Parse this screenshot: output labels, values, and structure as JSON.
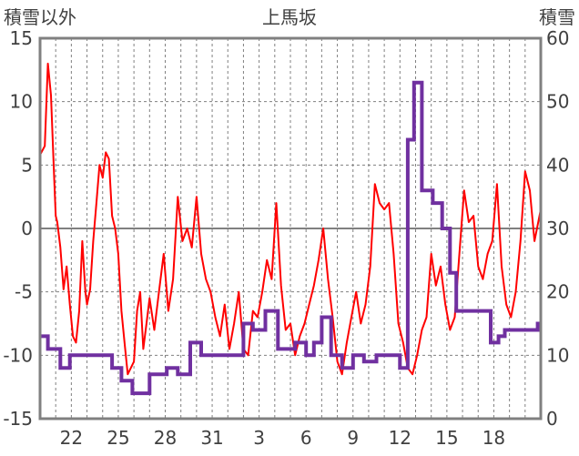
{
  "chart_data": {
    "type": "line",
    "title": "上馬坂",
    "y_left_label": "積雪以外",
    "y_right_label": "積雪",
    "y_left_ticks": [
      "15",
      "10",
      "5",
      "0",
      "-5",
      "-10",
      "-15"
    ],
    "y_right_ticks": [
      "60",
      "50",
      "40",
      "30",
      "20",
      "10",
      "0"
    ],
    "x_tick_labels": [
      "22",
      "25",
      "28",
      "31",
      "3",
      "6",
      "9",
      "12",
      "15",
      "18"
    ],
    "left_ylim": [
      -15,
      15
    ],
    "right_ylim": [
      0,
      60
    ],
    "x_range_days": [
      0,
      32
    ],
    "colors": {
      "series_red": "#ff0000",
      "series_purple": "#7030a0",
      "frame": "#808080",
      "grid": "#808080"
    },
    "series": [
      {
        "axis": "left",
        "color": "#ff0000",
        "x": [
          0,
          0.3,
          0.5,
          0.7,
          0.9,
          1.0,
          1.1,
          1.3,
          1.5,
          1.7,
          1.9,
          2.1,
          2.3,
          2.5,
          2.7,
          2.9,
          3.0,
          3.2,
          3.4,
          3.6,
          3.8,
          4.0,
          4.2,
          4.4,
          4.6,
          4.8,
          5.0,
          5.2,
          5.4,
          5.6,
          5.8,
          6.0,
          6.2,
          6.4,
          6.6,
          6.8,
          7.0,
          7.3,
          7.6,
          7.9,
          8.2,
          8.5,
          8.8,
          9.1,
          9.4,
          9.7,
          10.0,
          10.3,
          10.6,
          10.9,
          11.2,
          11.5,
          11.8,
          12.1,
          12.4,
          12.7,
          13.0,
          13.3,
          13.6,
          13.9,
          14.2,
          14.5,
          14.8,
          15.1,
          15.4,
          15.7,
          16.0,
          16.3,
          16.6,
          16.9,
          17.2,
          17.5,
          17.8,
          18.1,
          18.4,
          18.7,
          19.0,
          19.3,
          19.6,
          19.9,
          20.2,
          20.5,
          20.8,
          21.1,
          21.4,
          21.7,
          22.0,
          22.3,
          22.6,
          22.9,
          23.2,
          23.5,
          23.8,
          24.1,
          24.4,
          24.7,
          25.0,
          25.3,
          25.6,
          25.9,
          26.2,
          26.5,
          26.8,
          27.1,
          27.4,
          27.7,
          28.0,
          28.3,
          28.6,
          28.9,
          29.2,
          29.5,
          29.8,
          30.1,
          30.4,
          30.7,
          31.0,
          31.3,
          31.6,
          32.0
        ],
        "values": [
          5.8,
          6.5,
          13.0,
          10.5,
          4.0,
          1.0,
          0.5,
          -1.5,
          -4.8,
          -3.0,
          -6.0,
          -8.5,
          -9.0,
          -6.5,
          -1.0,
          -5.0,
          -6.0,
          -4.8,
          -1.0,
          2.0,
          5.0,
          4.0,
          6.0,
          5.5,
          1.0,
          0.0,
          -2.0,
          -6.5,
          -9.0,
          -11.5,
          -11.0,
          -10.5,
          -6.5,
          -5.0,
          -9.5,
          -7.5,
          -5.5,
          -8.0,
          -5.0,
          -2.0,
          -6.5,
          -4.0,
          2.5,
          -1.0,
          0.0,
          -1.5,
          2.5,
          -2.0,
          -4.0,
          -5.0,
          -7.0,
          -8.5,
          -6.0,
          -9.5,
          -7.5,
          -5.0,
          -9.5,
          -10.0,
          -6.5,
          -7.0,
          -5.0,
          -2.5,
          -4.0,
          2.0,
          -4.5,
          -8.0,
          -7.5,
          -10.0,
          -8.5,
          -7.5,
          -6.0,
          -4.5,
          -2.5,
          0.0,
          -4.0,
          -7.0,
          -10.5,
          -11.5,
          -9.0,
          -7.0,
          -5.0,
          -7.5,
          -6.0,
          -3.0,
          3.5,
          2.0,
          1.5,
          2.0,
          -2.0,
          -7.5,
          -9.0,
          -11.0,
          -11.5,
          -10.0,
          -8.0,
          -7.0,
          -2.0,
          -4.5,
          -3.0,
          -6.0,
          -8.0,
          -7.0,
          -2.0,
          3.0,
          0.5,
          1.0,
          -3.0,
          -4.0,
          -2.0,
          -1.0,
          3.5,
          -3.0,
          -6.0,
          -7.0,
          -5.0,
          -1.0,
          4.5,
          3.0,
          -1.0,
          1.5
        ]
      },
      {
        "axis": "right",
        "color": "#7030a0",
        "x": [
          0,
          0.5,
          0.5,
          1.3,
          1.3,
          1.9,
          1.9,
          4.6,
          4.6,
          5.2,
          5.2,
          5.9,
          5.9,
          7.0,
          7.0,
          8.1,
          8.1,
          8.8,
          8.8,
          9.6,
          9.6,
          10.3,
          10.3,
          13.0,
          13.0,
          13.6,
          13.6,
          14.4,
          14.4,
          15.2,
          15.2,
          16.3,
          16.3,
          17.0,
          17.0,
          17.5,
          17.5,
          18.0,
          18.0,
          18.6,
          18.6,
          19.3,
          19.3,
          20.0,
          20.0,
          20.7,
          20.7,
          21.5,
          21.5,
          23.0,
          23.0,
          23.5,
          23.5,
          23.9,
          23.9,
          24.4,
          24.4,
          25.1,
          25.1,
          25.7,
          25.7,
          26.2,
          26.2,
          26.6,
          26.6,
          28.8,
          28.8,
          29.3,
          29.3,
          29.7,
          29.7,
          31.8,
          31.8,
          32.0
        ],
        "values": [
          13,
          13,
          11,
          11,
          8,
          8,
          10,
          10,
          8,
          8,
          6,
          6,
          4,
          4,
          7,
          7,
          8,
          8,
          7,
          7,
          12,
          12,
          10,
          10,
          15,
          15,
          14,
          14,
          17,
          17,
          11,
          11,
          12,
          12,
          10,
          10,
          12,
          12,
          16,
          16,
          10,
          10,
          8,
          8,
          10,
          10,
          9,
          9,
          10,
          10,
          8,
          8,
          44,
          44,
          53,
          53,
          36,
          36,
          34,
          34,
          30,
          30,
          23,
          23,
          17,
          17,
          12,
          12,
          13,
          13,
          14,
          14,
          15,
          15
        ]
      }
    ]
  }
}
